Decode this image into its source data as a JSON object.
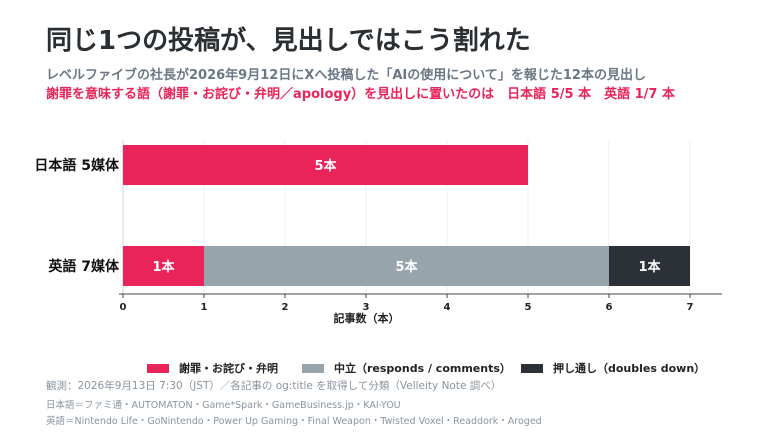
{
  "title": "同じ1つの投稿が、見出しではこう割れた",
  "subtitle": "レベルファイブの社長が2026年9月12日にXへ投稿した「AIの使用について」を報じた12本の見出し",
  "highlight": "謝罪を意味する語（謝罪・お詫び・弁明／apology）を見出しに置いたのは　日本語 5/5 本　英語 1/7 本",
  "colors": {
    "apology": "#e8245b",
    "neutral": "#98a4ac",
    "doubles_down": "#2b3136"
  },
  "chart_data": {
    "type": "bar",
    "orientation": "horizontal",
    "stacked": true,
    "categories": [
      "日本語 5媒体",
      "英語 7媒体"
    ],
    "series": [
      {
        "name": "謝罪・お詫び・弁明",
        "values": [
          5,
          1
        ],
        "labels": [
          "5本",
          "1本"
        ]
      },
      {
        "name": "中立（responds / comments）",
        "values": [
          0,
          5
        ],
        "labels": [
          "",
          "5本"
        ]
      },
      {
        "name": "押し通し（doubles down）",
        "values": [
          0,
          1
        ],
        "labels": [
          "",
          "1本"
        ]
      }
    ],
    "xlabel": "記事数（本）",
    "xlim": [
      0,
      7
    ],
    "xticks": [
      "0",
      "1",
      "2",
      "3",
      "4",
      "5",
      "6",
      "7"
    ],
    "grid": true,
    "legend": "bottom"
  },
  "notes": [
    "観測：2026年9月13日 7:30（JST）／各記事の og:title を取得して分類（Velleity Note 調べ）",
    "日本語＝ファミ通・AUTOMATON・Game*Spark・GameBusiness.jp・KAI-YOU",
    "英語＝Nintendo Life・GoNintendo・Power Up Gaming・Final Weapon・Twisted Voxel・Readdork・Aroged"
  ]
}
